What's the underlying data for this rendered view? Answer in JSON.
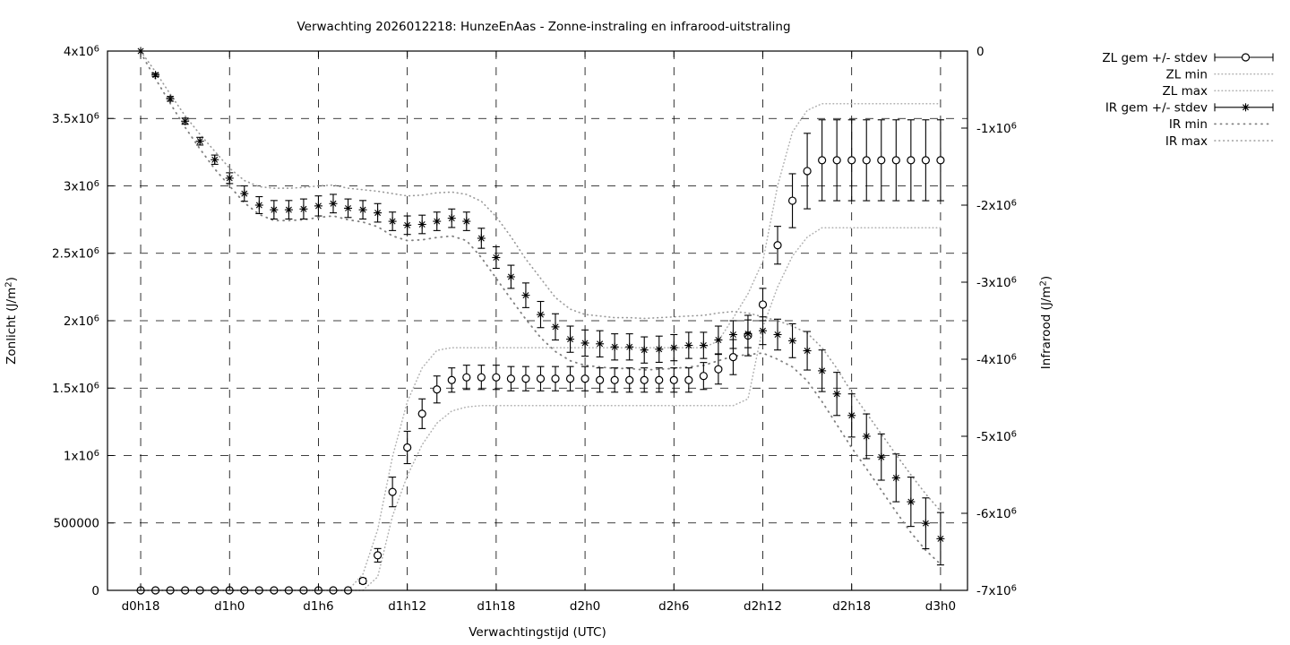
{
  "page": {
    "background": "#ffffff"
  },
  "colors": {
    "foreground": "#000000",
    "grid": "#000000",
    "zl_minmax_dotted": "#b0b0b0",
    "ir_min_dotted": "#7f7f7f",
    "ir_max_dotted": "#999999",
    "background": "#ffffff"
  },
  "chart_data": {
    "type": "line",
    "subtype": "errorbars-with-minmax-envelopes",
    "title": "Verwachting 2026012218: HunzeEnAas - Zonne-instraling en infrarood-uitstraling",
    "x_axis": {
      "label": "Verwachtingstijd (UTC)",
      "tick_labels": [
        "d0h18",
        "d1h0",
        "d1h6",
        "d1h12",
        "d1h18",
        "d2h0",
        "d2h6",
        "d2h12",
        "d2h18",
        "d3h0"
      ],
      "tick_hours": [
        18,
        24,
        30,
        36,
        42,
        48,
        54,
        60,
        66,
        72
      ],
      "plot_range_hours": [
        15.76,
        73.82
      ],
      "grid": true
    },
    "y_left": {
      "label": "Zonlicht (J/m²)",
      "range_e6": [
        0,
        4
      ],
      "tick_values_e6": [
        0,
        0.5,
        1,
        1.5,
        2,
        2.5,
        3,
        3.5,
        4
      ],
      "tick_labels": [
        "0",
        "500000",
        "1x10⁶",
        "1.5x10⁶",
        "2x10⁶",
        "2.5x10⁶",
        "3x10⁶",
        "3.5x10⁶",
        "4x10⁶"
      ],
      "grid": true
    },
    "y_right": {
      "label": "Infrarood (J/m²)",
      "range_e6": [
        -7,
        0
      ],
      "tick_values_e6": [
        0,
        -1,
        -2,
        -3,
        -4,
        -5,
        -6,
        -7
      ],
      "tick_labels": [
        "0",
        "-1x10⁶",
        "-2x10⁶",
        "-3x10⁶",
        "-4x10⁶",
        "-5x10⁶",
        "-6x10⁶",
        "-7x10⁶"
      ],
      "grid": false
    },
    "values_unit": "1e6 J/m2",
    "x_hours": [
      18,
      19,
      20,
      21,
      22,
      23,
      24,
      25,
      26,
      27,
      28,
      29,
      30,
      31,
      32,
      33,
      34,
      35,
      36,
      37,
      38,
      39,
      40,
      41,
      42,
      43,
      44,
      45,
      46,
      47,
      48,
      49,
      50,
      51,
      52,
      53,
      54,
      55,
      56,
      57,
      58,
      59,
      60,
      61,
      62,
      63,
      64,
      65,
      66,
      67,
      68,
      69,
      70,
      71,
      72
    ],
    "series": [
      {
        "name": "ZL gem +/- stdev",
        "axis": "left",
        "style": "errorbar",
        "marker": "open-circle",
        "mean": [
          0,
          0,
          0,
          0,
          0,
          0,
          0,
          0,
          0,
          0,
          0,
          0,
          0,
          0,
          0,
          0.07,
          0.26,
          0.73,
          1.06,
          1.31,
          1.49,
          1.56,
          1.58,
          1.58,
          1.58,
          1.57,
          1.57,
          1.57,
          1.57,
          1.57,
          1.57,
          1.56,
          1.56,
          1.56,
          1.56,
          1.56,
          1.56,
          1.56,
          1.59,
          1.64,
          1.73,
          1.89,
          2.12,
          2.56,
          2.89,
          3.11,
          3.19,
          3.19,
          3.19,
          3.19,
          3.19,
          3.19,
          3.19,
          3.19,
          3.19
        ],
        "stdev": [
          0,
          0,
          0,
          0,
          0,
          0,
          0,
          0,
          0,
          0,
          0,
          0,
          0,
          0,
          0,
          0.02,
          0.05,
          0.11,
          0.12,
          0.11,
          0.1,
          0.09,
          0.09,
          0.09,
          0.09,
          0.09,
          0.09,
          0.09,
          0.09,
          0.09,
          0.09,
          0.09,
          0.09,
          0.09,
          0.09,
          0.09,
          0.09,
          0.09,
          0.1,
          0.11,
          0.13,
          0.15,
          0.12,
          0.14,
          0.2,
          0.28,
          0.3,
          0.3,
          0.3,
          0.3,
          0.3,
          0.3,
          0.3,
          0.3,
          0.3
        ]
      },
      {
        "name": "ZL min",
        "axis": "left",
        "style": "dotted-fine",
        "values": [
          0,
          0,
          0,
          0,
          0,
          0,
          0,
          0,
          0,
          0,
          0,
          0,
          0,
          0,
          0,
          0,
          0.1,
          0.55,
          0.85,
          1.08,
          1.24,
          1.33,
          1.36,
          1.37,
          1.37,
          1.37,
          1.37,
          1.37,
          1.37,
          1.37,
          1.37,
          1.37,
          1.37,
          1.37,
          1.37,
          1.37,
          1.37,
          1.37,
          1.37,
          1.37,
          1.37,
          1.42,
          1.95,
          2.25,
          2.48,
          2.62,
          2.69,
          2.69,
          2.69,
          2.69,
          2.69,
          2.69,
          2.69,
          2.69,
          2.69
        ]
      },
      {
        "name": "ZL max",
        "axis": "left",
        "style": "dotted-fine",
        "values": [
          0,
          0,
          0,
          0,
          0,
          0,
          0,
          0,
          0,
          0,
          0,
          0,
          0,
          0,
          0,
          0.12,
          0.45,
          0.99,
          1.4,
          1.65,
          1.78,
          1.8,
          1.8,
          1.8,
          1.8,
          1.8,
          1.8,
          1.8,
          1.8,
          1.8,
          1.8,
          1.8,
          1.8,
          1.8,
          1.8,
          1.8,
          1.8,
          1.8,
          1.8,
          1.85,
          2.02,
          2.2,
          2.44,
          3.0,
          3.4,
          3.56,
          3.61,
          3.61,
          3.61,
          3.61,
          3.61,
          3.61,
          3.61,
          3.61,
          3.61
        ]
      },
      {
        "name": "IR gem +/- stdev",
        "axis": "right",
        "style": "errorbar",
        "marker": "asterisk",
        "mean": [
          0,
          -0.31,
          -0.62,
          -0.91,
          -1.17,
          -1.41,
          -1.65,
          -1.85,
          -2.0,
          -2.06,
          -2.06,
          -2.05,
          -2.01,
          -1.98,
          -2.04,
          -2.06,
          -2.1,
          -2.21,
          -2.26,
          -2.25,
          -2.21,
          -2.17,
          -2.21,
          -2.43,
          -2.68,
          -2.93,
          -3.17,
          -3.42,
          -3.58,
          -3.74,
          -3.79,
          -3.8,
          -3.84,
          -3.84,
          -3.88,
          -3.87,
          -3.85,
          -3.82,
          -3.82,
          -3.75,
          -3.68,
          -3.67,
          -3.63,
          -3.68,
          -3.76,
          -3.89,
          -4.15,
          -4.45,
          -4.73,
          -5.0,
          -5.27,
          -5.54,
          -5.85,
          -6.13,
          -6.33
        ],
        "stdev": [
          0,
          0.02,
          0.03,
          0.04,
          0.05,
          0.06,
          0.07,
          0.1,
          0.11,
          0.12,
          0.12,
          0.13,
          0.13,
          0.12,
          0.12,
          0.12,
          0.12,
          0.12,
          0.12,
          0.12,
          0.12,
          0.12,
          0.12,
          0.13,
          0.14,
          0.15,
          0.16,
          0.17,
          0.17,
          0.17,
          0.17,
          0.17,
          0.17,
          0.17,
          0.17,
          0.17,
          0.17,
          0.17,
          0.17,
          0.18,
          0.18,
          0.18,
          0.18,
          0.2,
          0.22,
          0.25,
          0.27,
          0.28,
          0.28,
          0.29,
          0.3,
          0.31,
          0.32,
          0.33,
          0.34
        ]
      },
      {
        "name": "IR min",
        "axis": "right",
        "style": "dotted-coarse",
        "values": [
          -0.02,
          -0.36,
          -0.68,
          -0.99,
          -1.27,
          -1.53,
          -1.75,
          -1.97,
          -2.12,
          -2.2,
          -2.2,
          -2.19,
          -2.16,
          -2.14,
          -2.19,
          -2.22,
          -2.28,
          -2.4,
          -2.46,
          -2.45,
          -2.42,
          -2.4,
          -2.46,
          -2.68,
          -2.95,
          -3.22,
          -3.48,
          -3.72,
          -3.9,
          -4.02,
          -4.08,
          -4.1,
          -4.12,
          -4.12,
          -4.14,
          -4.13,
          -4.12,
          -4.1,
          -4.08,
          -4.02,
          -3.96,
          -3.94,
          -3.92,
          -4.0,
          -4.1,
          -4.28,
          -4.55,
          -4.85,
          -5.15,
          -5.42,
          -5.7,
          -5.98,
          -6.25,
          -6.48,
          -6.66
        ]
      },
      {
        "name": "IR max",
        "axis": "right",
        "style": "dotted-med",
        "values": [
          0,
          -0.27,
          -0.56,
          -0.84,
          -1.08,
          -1.3,
          -1.52,
          -1.68,
          -1.76,
          -1.78,
          -1.78,
          -1.77,
          -1.75,
          -1.74,
          -1.78,
          -1.8,
          -1.82,
          -1.85,
          -1.88,
          -1.87,
          -1.84,
          -1.83,
          -1.86,
          -1.95,
          -2.15,
          -2.41,
          -2.7,
          -2.95,
          -3.2,
          -3.35,
          -3.42,
          -3.44,
          -3.46,
          -3.46,
          -3.47,
          -3.46,
          -3.45,
          -3.44,
          -3.43,
          -3.4,
          -3.38,
          -3.4,
          -3.45,
          -3.5,
          -3.57,
          -3.66,
          -3.85,
          -4.12,
          -4.43,
          -4.7,
          -4.97,
          -5.24,
          -5.5,
          -5.75,
          -5.97
        ]
      }
    ],
    "legend": {
      "position": "outside-top-right",
      "entries": [
        {
          "label": "ZL gem +/- stdev",
          "glyph": "errorbar-circle"
        },
        {
          "label": "ZL min",
          "glyph": "dotted-fine"
        },
        {
          "label": "ZL max",
          "glyph": "dotted-fine"
        },
        {
          "label": "IR gem +/- stdev",
          "glyph": "errorbar-star"
        },
        {
          "label": "IR min",
          "glyph": "dotted-coarse"
        },
        {
          "label": "IR max",
          "glyph": "dotted-med"
        }
      ]
    }
  }
}
